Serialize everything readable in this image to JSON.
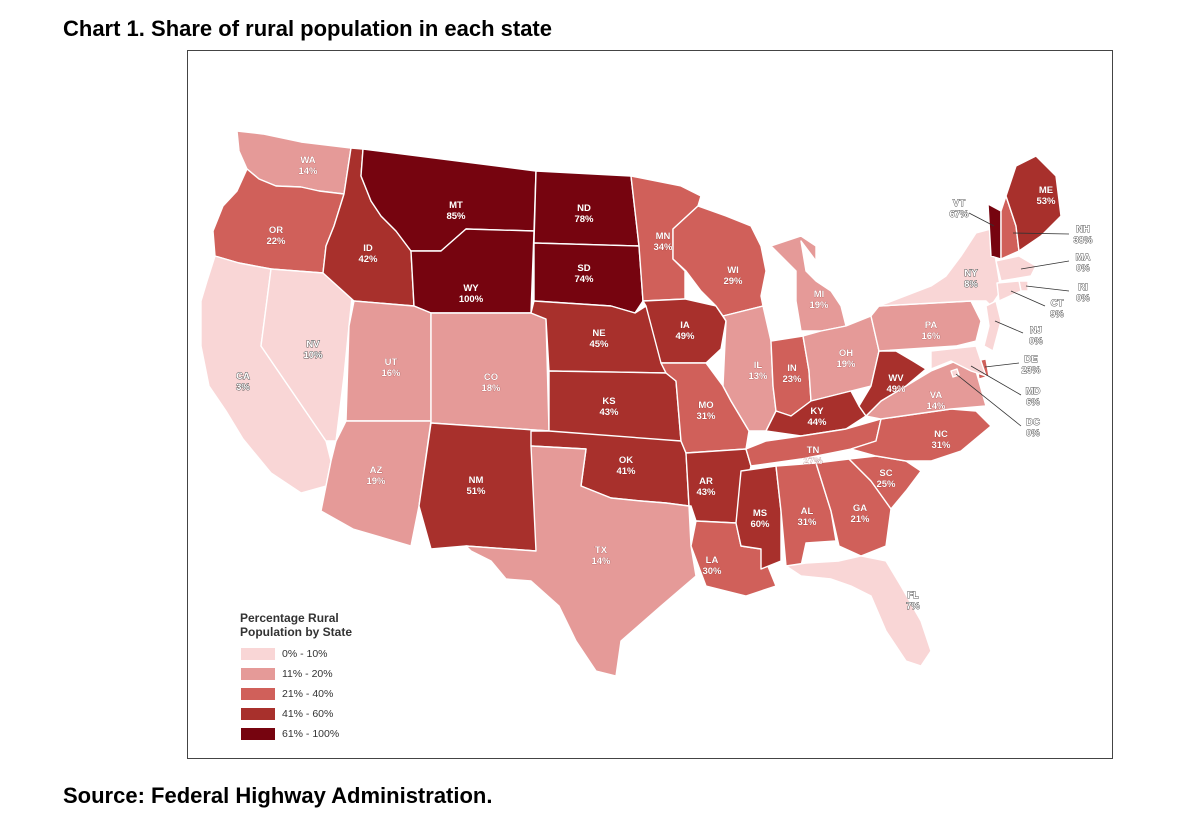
{
  "title": "Chart 1. Share of rural population in each state",
  "source": "Source: Federal Highway Administration.",
  "legend": {
    "title_line1": "Percentage Rural",
    "title_line2": "Population by State",
    "bins": [
      {
        "label": "0% - 10%",
        "color": "#f9d6d6"
      },
      {
        "label": "11% - 20%",
        "color": "#e59a98"
      },
      {
        "label": "21% - 40%",
        "color": "#d0605a"
      },
      {
        "label": "41% - 60%",
        "color": "#a8302c"
      },
      {
        "label": "61% - 100%",
        "color": "#76040f"
      }
    ]
  },
  "chart_data": {
    "type": "choropleth",
    "metric": "Percentage Rural Population by State",
    "states": [
      {
        "abbr": "WA",
        "value": "14%",
        "bin": 1
      },
      {
        "abbr": "OR",
        "value": "22%",
        "bin": 2
      },
      {
        "abbr": "CA",
        "value": "3%",
        "bin": 0
      },
      {
        "abbr": "NV",
        "value": "10%",
        "bin": 0
      },
      {
        "abbr": "ID",
        "value": "42%",
        "bin": 3
      },
      {
        "abbr": "MT",
        "value": "85%",
        "bin": 4
      },
      {
        "abbr": "WY",
        "value": "100%",
        "bin": 4
      },
      {
        "abbr": "UT",
        "value": "16%",
        "bin": 1
      },
      {
        "abbr": "AZ",
        "value": "19%",
        "bin": 1
      },
      {
        "abbr": "CO",
        "value": "18%",
        "bin": 1
      },
      {
        "abbr": "NM",
        "value": "51%",
        "bin": 3
      },
      {
        "abbr": "ND",
        "value": "78%",
        "bin": 4
      },
      {
        "abbr": "SD",
        "value": "74%",
        "bin": 4
      },
      {
        "abbr": "NE",
        "value": "45%",
        "bin": 3
      },
      {
        "abbr": "KS",
        "value": "43%",
        "bin": 3
      },
      {
        "abbr": "OK",
        "value": "41%",
        "bin": 3
      },
      {
        "abbr": "TX",
        "value": "14%",
        "bin": 1
      },
      {
        "abbr": "MN",
        "value": "34%",
        "bin": 2
      },
      {
        "abbr": "IA",
        "value": "49%",
        "bin": 3
      },
      {
        "abbr": "MO",
        "value": "31%",
        "bin": 2
      },
      {
        "abbr": "AR",
        "value": "43%",
        "bin": 3
      },
      {
        "abbr": "LA",
        "value": "30%",
        "bin": 2
      },
      {
        "abbr": "WI",
        "value": "29%",
        "bin": 2
      },
      {
        "abbr": "IL",
        "value": "13%",
        "bin": 1
      },
      {
        "abbr": "MI",
        "value": "19%",
        "bin": 1
      },
      {
        "abbr": "IN",
        "value": "23%",
        "bin": 2
      },
      {
        "abbr": "OH",
        "value": "19%",
        "bin": 1
      },
      {
        "abbr": "KY",
        "value": "44%",
        "bin": 3
      },
      {
        "abbr": "TN",
        "value": "27%",
        "bin": 2
      },
      {
        "abbr": "MS",
        "value": "60%",
        "bin": 3
      },
      {
        "abbr": "AL",
        "value": "31%",
        "bin": 2
      },
      {
        "abbr": "GA",
        "value": "21%",
        "bin": 2
      },
      {
        "abbr": "FL",
        "value": "7%",
        "bin": 0
      },
      {
        "abbr": "SC",
        "value": "25%",
        "bin": 2
      },
      {
        "abbr": "NC",
        "value": "31%",
        "bin": 2
      },
      {
        "abbr": "VA",
        "value": "14%",
        "bin": 1
      },
      {
        "abbr": "WV",
        "value": "49%",
        "bin": 3
      },
      {
        "abbr": "PA",
        "value": "16%",
        "bin": 1
      },
      {
        "abbr": "NY",
        "value": "8%",
        "bin": 0
      },
      {
        "abbr": "VT",
        "value": "67%",
        "bin": 4
      },
      {
        "abbr": "NH",
        "value": "38%",
        "bin": 2
      },
      {
        "abbr": "ME",
        "value": "53%",
        "bin": 3
      },
      {
        "abbr": "MA",
        "value": "0%",
        "bin": 0
      },
      {
        "abbr": "RI",
        "value": "0%",
        "bin": 0
      },
      {
        "abbr": "CT",
        "value": "9%",
        "bin": 0
      },
      {
        "abbr": "NJ",
        "value": "0%",
        "bin": 0
      },
      {
        "abbr": "DE",
        "value": "23%",
        "bin": 2
      },
      {
        "abbr": "MD",
        "value": "6%",
        "bin": 0
      },
      {
        "abbr": "DC",
        "value": "0%",
        "bin": 0
      }
    ]
  }
}
